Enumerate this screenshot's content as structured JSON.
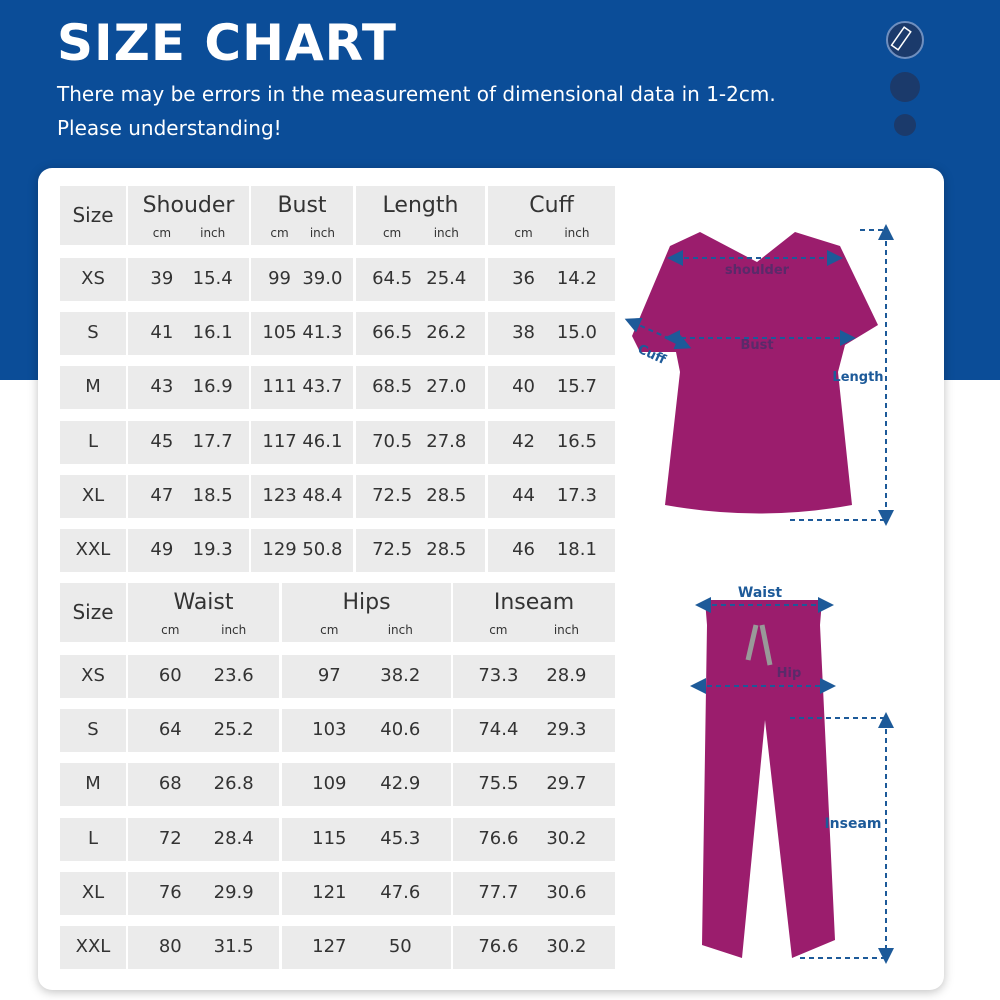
{
  "header": {
    "title": "SIZE CHART",
    "lines": [
      "There may be errors in the measurement of dimensional data in 1-2cm.",
      "Please understanding!"
    ]
  },
  "tops": {
    "size_label": "Size",
    "columns": [
      {
        "name": "Shouder",
        "units": [
          "cm",
          "inch"
        ]
      },
      {
        "name": "Bust",
        "units": [
          "cm",
          "inch"
        ]
      },
      {
        "name": "Length",
        "units": [
          "cm",
          "inch"
        ]
      },
      {
        "name": "Cuff",
        "units": [
          "cm",
          "inch"
        ]
      }
    ],
    "rows": [
      [
        "XS",
        "39",
        "15.4",
        "99",
        "39.0",
        "64.5",
        "25.4",
        "36",
        "14.2"
      ],
      [
        "S",
        "41",
        "16.1",
        "105",
        "41.3",
        "66.5",
        "26.2",
        "38",
        "15.0"
      ],
      [
        "M",
        "43",
        "16.9",
        "111",
        "43.7",
        "68.5",
        "27.0",
        "40",
        "15.7"
      ],
      [
        "L",
        "45",
        "17.7",
        "117",
        "46.1",
        "70.5",
        "27.8",
        "42",
        "16.5"
      ],
      [
        "XL",
        "47",
        "18.5",
        "123",
        "48.4",
        "72.5",
        "28.5",
        "44",
        "17.3"
      ],
      [
        "XXL",
        "49",
        "19.3",
        "129",
        "50.8",
        "72.5",
        "28.5",
        "46",
        "18.1"
      ]
    ]
  },
  "bottoms": {
    "size_label": "Size",
    "columns": [
      {
        "name": "Waist",
        "units": [
          "cm",
          "inch"
        ]
      },
      {
        "name": "Hips",
        "units": [
          "cm",
          "inch"
        ]
      },
      {
        "name": "Inseam",
        "units": [
          "cm",
          "inch"
        ]
      }
    ],
    "rows": [
      [
        "XS",
        "60",
        "23.6",
        "97",
        "38.2",
        "73.3",
        "28.9"
      ],
      [
        "S",
        "64",
        "25.2",
        "103",
        "40.6",
        "74.4",
        "29.3"
      ],
      [
        "M",
        "68",
        "26.8",
        "109",
        "42.9",
        "75.5",
        "29.7"
      ],
      [
        "L",
        "72",
        "28.4",
        "115",
        "45.3",
        "76.6",
        "30.2"
      ],
      [
        "XL",
        "76",
        "29.9",
        "121",
        "47.6",
        "77.7",
        "30.6"
      ],
      [
        "XXL",
        "80",
        "31.5",
        "127",
        "50",
        "76.6",
        "30.2"
      ]
    ]
  },
  "diagram": {
    "top": {
      "shoulder": "shoulder",
      "bust": "Bust",
      "cuff": "Cuff",
      "length": "Length"
    },
    "bottom": {
      "waist": "Waist",
      "hip": "Hip",
      "inseam": "Inseam"
    }
  }
}
